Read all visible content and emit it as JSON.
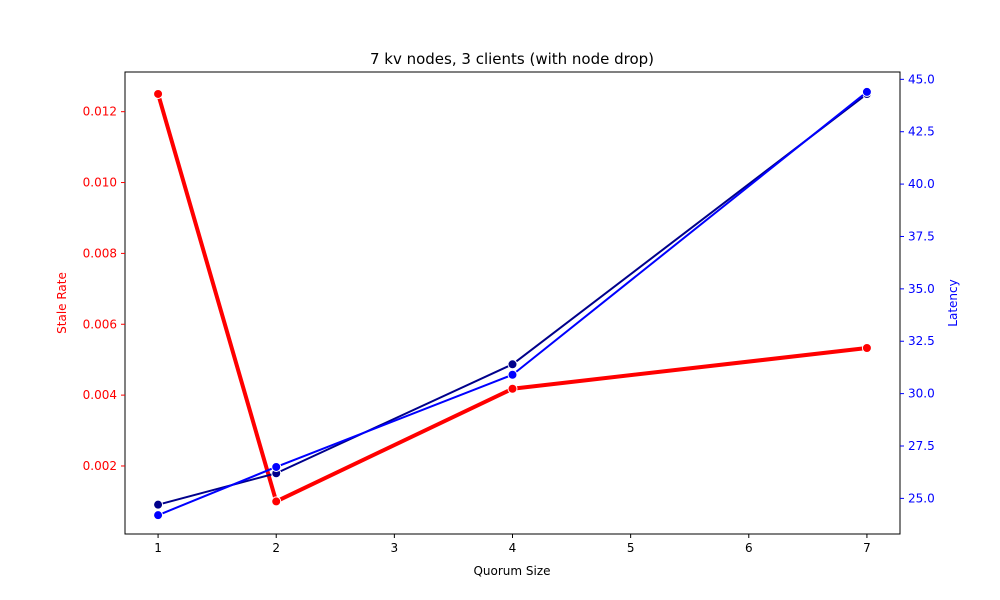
{
  "chart_data": {
    "type": "line",
    "title": "7 kv nodes, 3 clients (with node drop)",
    "xlabel": "Quorum Size",
    "ylabel_left": "Stale Rate",
    "ylabel_right": "Latency",
    "x": [
      1,
      2,
      4,
      7
    ],
    "xlim": [
      0.72,
      7.28
    ],
    "xticks": [
      1,
      2,
      3,
      4,
      5,
      6,
      7
    ],
    "ylim_left": [
      8e-05,
      0.01312
    ],
    "yticks_left": [
      "0.002",
      "0.004",
      "0.006",
      "0.008",
      "0.010",
      "0.012"
    ],
    "ylim_right": [
      23.3,
      45.35
    ],
    "yticks_right": [
      "25.0",
      "27.5",
      "30.0",
      "32.5",
      "35.0",
      "37.5",
      "40.0",
      "42.5",
      "45.0"
    ],
    "grid": false,
    "legend": "none",
    "series": [
      {
        "axis": "left",
        "color": "#ff0000",
        "width": 4,
        "values": [
          0.0125,
          0.001,
          0.00418,
          0.00533
        ]
      },
      {
        "axis": "right",
        "color": "#00008b",
        "width": 2,
        "values": [
          24.7,
          26.2,
          31.4,
          44.3
        ]
      },
      {
        "axis": "right",
        "color": "#0000ff",
        "width": 2,
        "values": [
          24.2,
          26.5,
          30.9,
          44.4
        ]
      }
    ],
    "colors": {
      "left_axis": "#ff0000",
      "right_axis": "#0000ff",
      "frame": "#000000"
    }
  }
}
